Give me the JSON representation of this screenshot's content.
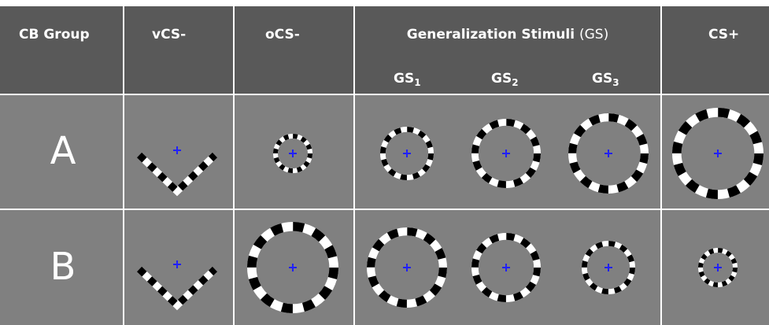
{
  "header": {
    "columns": [
      "CB Group",
      "vCS-",
      "oCS-",
      {
        "bold": "Generalization Stimuli",
        "normal": "(GS)"
      },
      "CS+"
    ],
    "gs": [
      {
        "text": "GS",
        "sub": "1"
      },
      {
        "text": "GS",
        "sub": "2"
      },
      {
        "text": "GS",
        "sub": "3"
      }
    ]
  },
  "rows": [
    "A",
    "B"
  ]
}
